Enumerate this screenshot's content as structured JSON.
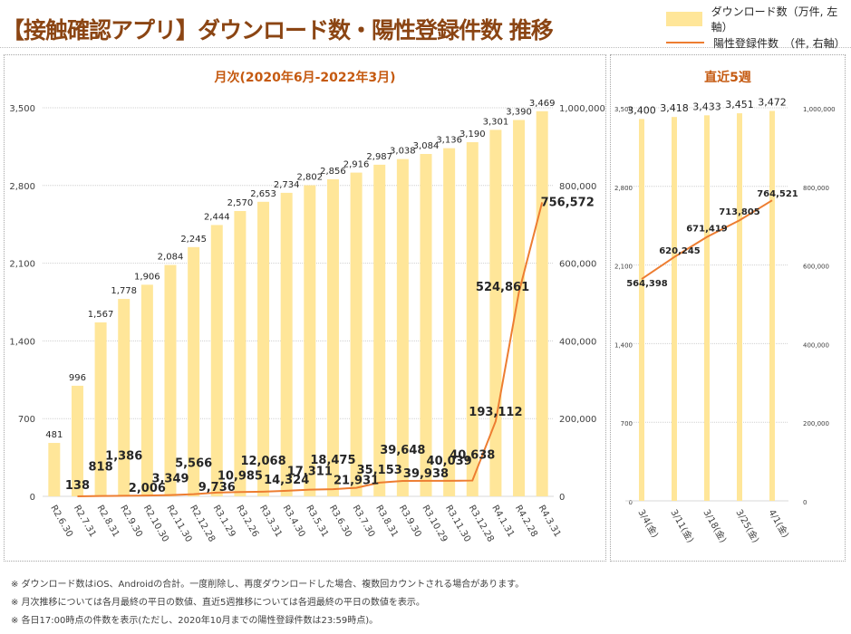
{
  "title": "【接触確認アプリ】ダウンロード数・陽性登録件数 推移",
  "legend": {
    "bar_label": "ダウンロード数（万件, 左軸）",
    "line_label": "陽性登録件数　（件, 右軸）"
  },
  "colors": {
    "bar": "#ffe699",
    "line": "#ed7d31",
    "title": "#8b4513",
    "panel_title": "#c55a11"
  },
  "notes": [
    "※ ダウンロード数はiOS、Androidの合計。一度削除し、再度ダウンロードした場合、複数回カウントされる場合があります。",
    "※ 月次推移については各月最終の平日の数値、直近5週推移については各週最終の平日の数値を表示。",
    "※ 各日17:00時点の件数を表示(ただし、2020年10月までの陽性登録件数は23:59時点)。"
  ],
  "chart_data": [
    {
      "type": "bar",
      "title": "月次(2020年6月-2022年3月)",
      "categories": [
        "R2.6.30",
        "R2.7.31",
        "R2.8.31",
        "R2.9.30",
        "R2.10.30",
        "R2.11.30",
        "R2.12.28",
        "R3.1.29",
        "R3.2.26",
        "R3.3.31",
        "R3.4.30",
        "R3.5.31",
        "R3.6.30",
        "R3.7.30",
        "R3.8.31",
        "R3.9.30",
        "R3.10.29",
        "R3.11.30",
        "R3.12.28",
        "R4.1.31",
        "R4.2.28",
        "R4.3.31"
      ],
      "series": [
        {
          "name": "ダウンロード数（万件, 左軸）",
          "type": "bar",
          "axis": "left",
          "values": [
            481,
            996,
            1567,
            1778,
            1906,
            2084,
            2245,
            2444,
            2570,
            2653,
            2734,
            2802,
            2856,
            2916,
            2987,
            3038,
            3084,
            3136,
            3190,
            3301,
            3390,
            3469
          ]
        },
        {
          "name": "陽性登録件数（件, 右軸）",
          "type": "line",
          "axis": "right",
          "values": [
            null,
            138,
            818,
            1386,
            2006,
            3349,
            5566,
            9736,
            10985,
            12068,
            14324,
            17311,
            18475,
            21931,
            35153,
            39648,
            39938,
            40039,
            40638,
            193112,
            524861,
            756572
          ]
        }
      ],
      "left_axis": {
        "ylim": [
          0,
          3500
        ],
        "ticks": [
          "0",
          "700",
          "1,400",
          "2,100",
          "2,800",
          "3,500"
        ]
      },
      "right_axis": {
        "ylim": [
          0,
          1000000
        ],
        "ticks": [
          "0",
          "200,000",
          "400,000",
          "600,000",
          "800,000",
          "1,000,000"
        ]
      },
      "grid": true
    },
    {
      "type": "bar",
      "title": "直近5週",
      "categories": [
        "3/4(金)",
        "3/11(金)",
        "3/18(金)",
        "3/25(金)",
        "4/1(金)"
      ],
      "series": [
        {
          "name": "ダウンロード数（万件, 左軸）",
          "type": "bar",
          "axis": "left",
          "values": [
            3400,
            3418,
            3433,
            3451,
            3472
          ]
        },
        {
          "name": "陽性登録件数（件, 右軸）",
          "type": "line",
          "axis": "right",
          "values": [
            564398,
            620245,
            671419,
            713805,
            764521
          ]
        }
      ],
      "left_axis": {
        "ylim": [
          0,
          3500
        ],
        "ticks": [
          "0",
          "700",
          "1,400",
          "2,100",
          "2,800",
          "3,500"
        ]
      },
      "right_axis": {
        "ylim": [
          0,
          1000000
        ],
        "ticks": [
          "0",
          "200,000",
          "400,000",
          "600,000",
          "800,000",
          "1,000,000"
        ]
      },
      "grid": true
    }
  ]
}
